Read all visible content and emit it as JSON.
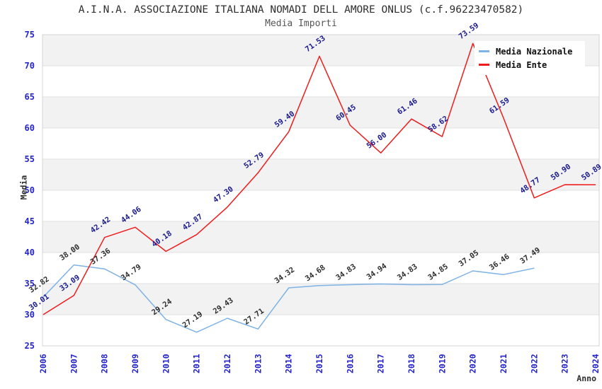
{
  "chart_data": {
    "type": "line",
    "title": "A.I.N.A. ASSOCIAZIONE ITALIANA NOMADI DELL AMORE ONLUS (c.f.96223470582)",
    "subtitle": "Media Importi",
    "xlabel": "Anno",
    "ylabel": "Media",
    "ylim": [
      25,
      75
    ],
    "y_ticks": [
      25,
      30,
      35,
      40,
      45,
      50,
      55,
      60,
      65,
      70,
      75
    ],
    "categories": [
      "2006",
      "2007",
      "2008",
      "2009",
      "2010",
      "2011",
      "2012",
      "2013",
      "2014",
      "2015",
      "2016",
      "2017",
      "2018",
      "2019",
      "2020",
      "2021",
      "2022",
      "2023",
      "2024"
    ],
    "series": [
      {
        "name": "Media Nazionale",
        "color": "#7FB2E5",
        "label_color": "#2e2e2e",
        "values": [
          32.82,
          38.0,
          37.36,
          34.79,
          29.24,
          27.19,
          29.43,
          27.71,
          34.32,
          34.68,
          34.83,
          34.94,
          34.83,
          34.85,
          37.05,
          36.46,
          37.49,
          null,
          null
        ]
      },
      {
        "name": "Media Ente",
        "color": "#EE1C1C",
        "label_color": "#1b1b8e",
        "values": [
          30.01,
          33.09,
          42.42,
          44.06,
          40.18,
          42.87,
          47.3,
          52.79,
          59.4,
          71.53,
          60.45,
          56.0,
          61.46,
          58.62,
          73.59,
          61.59,
          48.77,
          50.9,
          50.89
        ]
      }
    ],
    "legend_position": "top-right",
    "grid": "horizontal-bands",
    "style": {
      "band_color": "#f2f2f2",
      "grid_color": "#e0e0e0",
      "border_color": "#d4d4d4",
      "tick_label_color": "#2323cd",
      "background": "#ffffff"
    }
  }
}
